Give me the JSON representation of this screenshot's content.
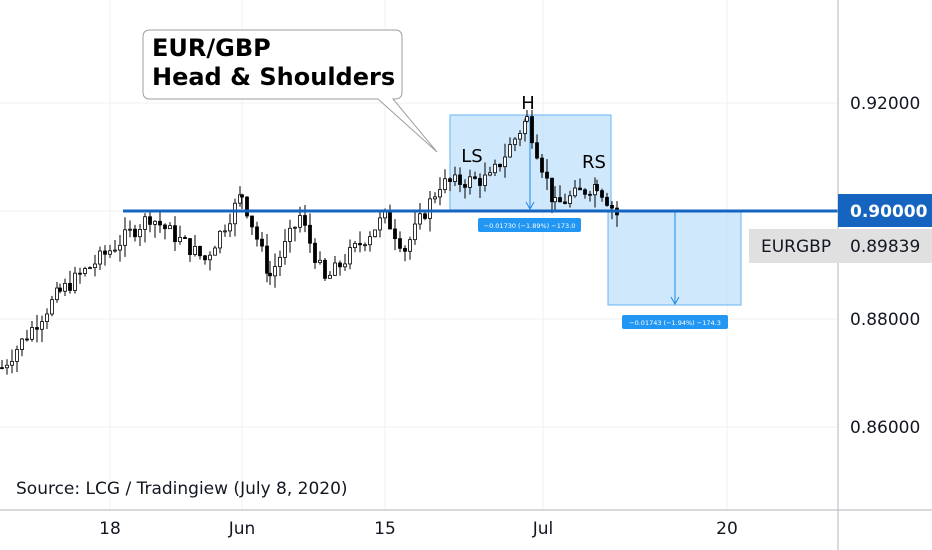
{
  "chart_data": {
    "type": "candlestick",
    "title": "EUR/GBP\nHead & Shoulders",
    "title_lines": [
      "EUR/GBP",
      "Head & Shoulders"
    ],
    "symbol": "EURGBP",
    "last_price": "0.89839",
    "neckline_value": "0.90000",
    "neckline": 0.9,
    "y_ticks": [
      "0.92000",
      "0.90000",
      "0.88000",
      "0.86000"
    ],
    "y_tick_values": [
      0.92,
      0.9,
      0.88,
      0.86
    ],
    "x_ticks": [
      "18",
      "Jun",
      "15",
      "Jul",
      "20"
    ],
    "ylim": [
      0.8445,
      0.9425
    ],
    "pattern_labels": {
      "left_shoulder": "LS",
      "head": "H",
      "right_shoulder": "RS"
    },
    "measure_upper": {
      "text": "−0.01730 (−1.89%) −173.0",
      "high": 0.9173,
      "low": 0.9
    },
    "measure_lower": {
      "text": "−0.01743 (−1.94%) −174.3",
      "high": 0.9,
      "low": 0.88257
    },
    "source_text": "Source: LCG / Tradingiew (July 8, 2020)",
    "colors": {
      "neckline": "#1565c0",
      "box": "#bbdefb",
      "box_border": "#64b5f6",
      "label_bg": "#2196f3",
      "candle": "#000000",
      "axis_bg": "#d9d9d9"
    },
    "key_points": [
      {
        "date": "May 11",
        "close": 0.871
      },
      {
        "date": "May 15",
        "close": 0.885
      },
      {
        "date": "May 19",
        "close": 0.899
      },
      {
        "date": "May 26",
        "close": 0.891
      },
      {
        "date": "Jun 1",
        "close": 0.903
      },
      {
        "date": "Jun 5",
        "close": 0.888
      },
      {
        "date": "Jun 8",
        "close": 0.899
      },
      {
        "date": "Jun 12",
        "close": 0.887
      },
      {
        "date": "Jun 16",
        "close": 0.899
      },
      {
        "date": "Jun 19",
        "close": 0.893
      },
      {
        "date": "Jun 22",
        "close": 0.905
      },
      {
        "date": "Jun 25",
        "close": 0.906
      },
      {
        "date": "Jun 29",
        "close": 0.917
      },
      {
        "date": "Jul 2",
        "close": 0.901
      },
      {
        "date": "Jul 6",
        "close": 0.905
      },
      {
        "date": "Jul 8",
        "close": 0.898
      }
    ]
  }
}
